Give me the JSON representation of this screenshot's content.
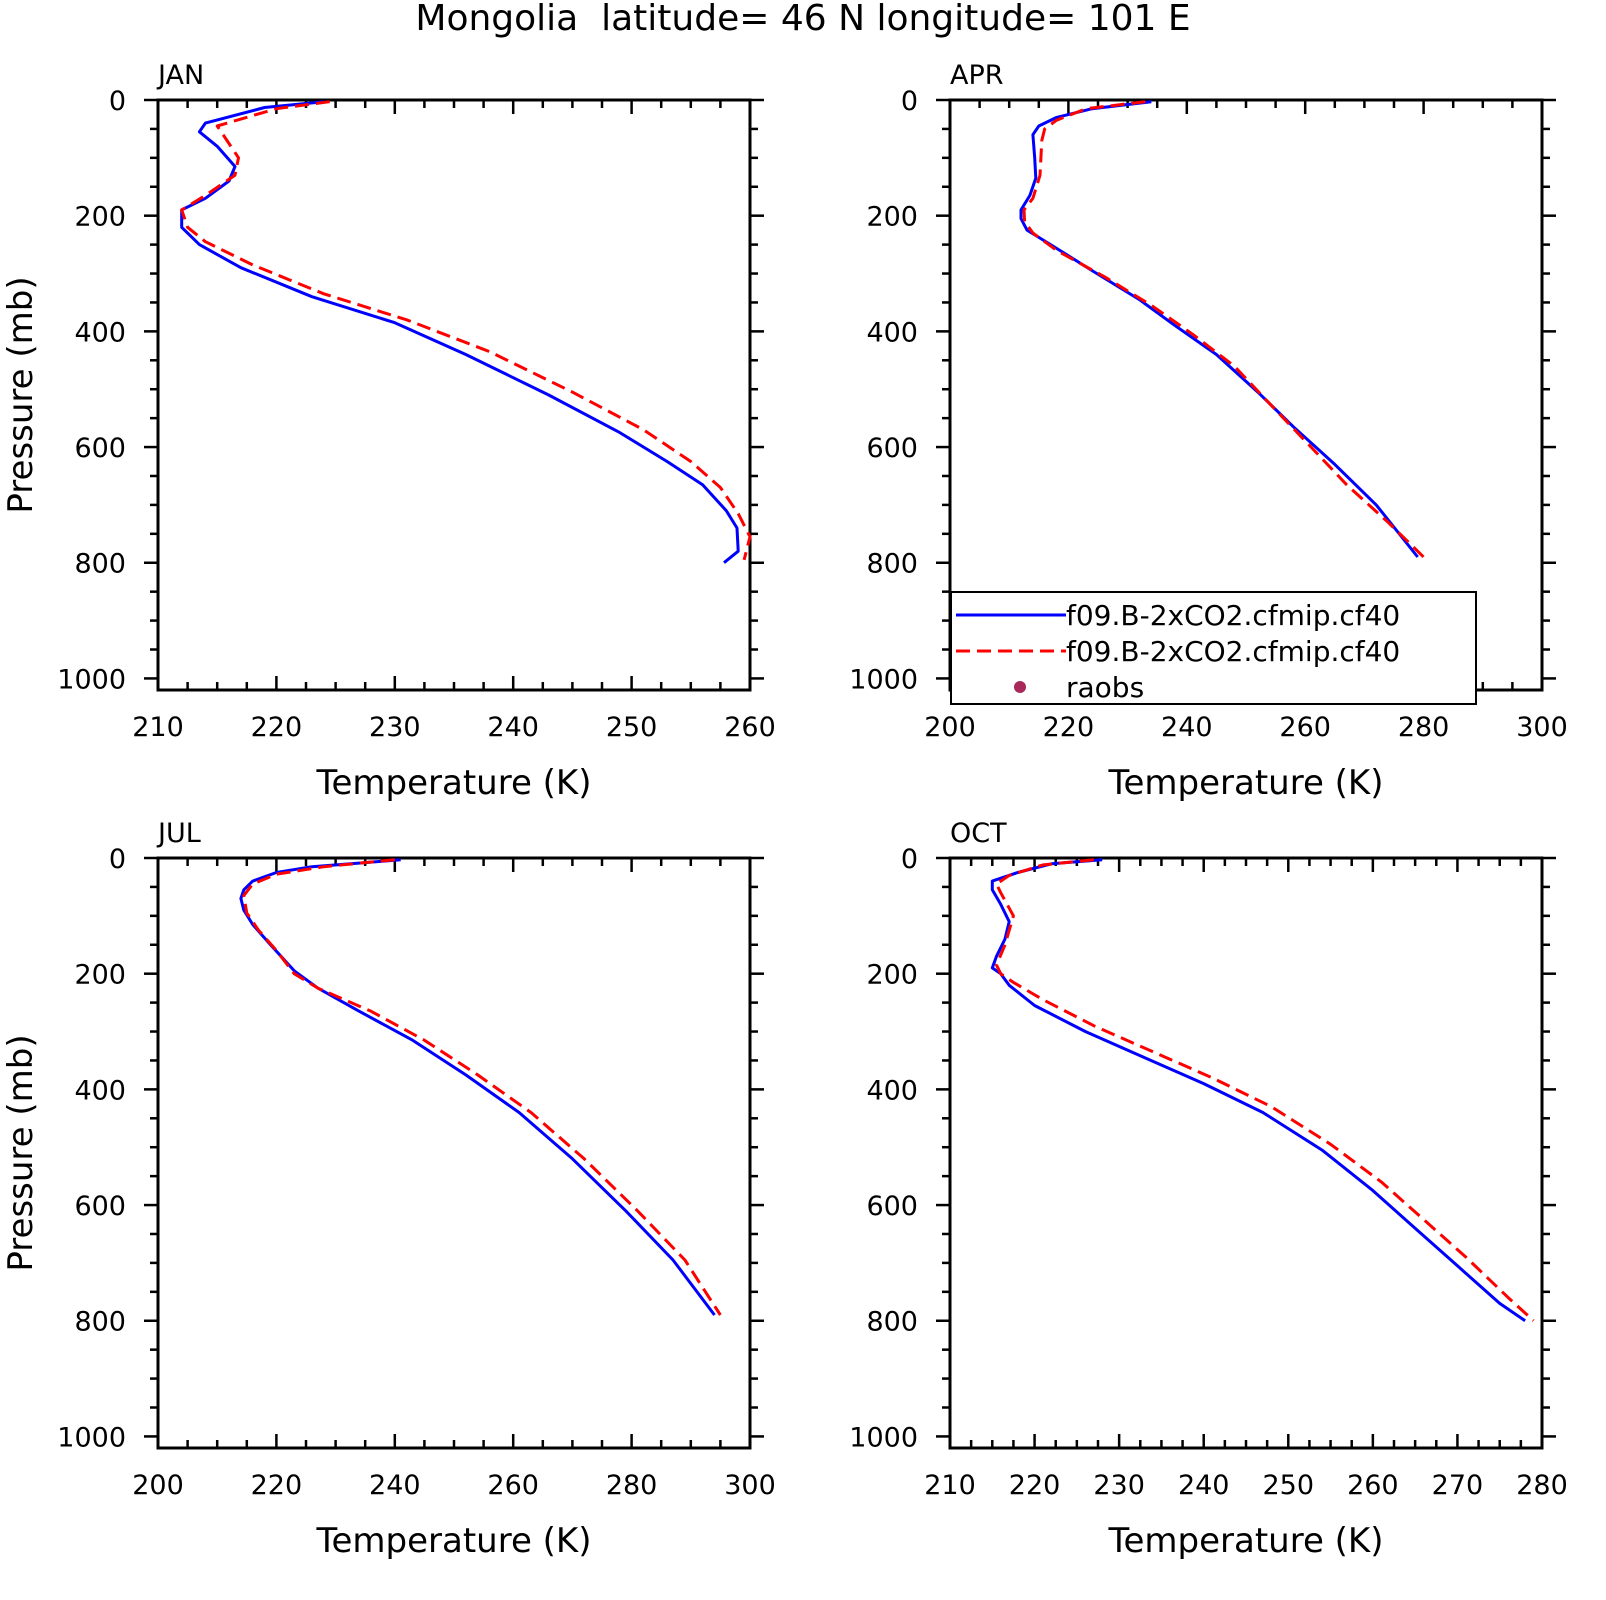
{
  "figure": {
    "title": "Mongolia  latitude= 46 N longitude= 101 E"
  },
  "legend": {
    "entries": [
      {
        "label": "f09.B-2xCO2.cfmip.cf40",
        "style": "solid",
        "color": "#0000ff"
      },
      {
        "label": "f09.B-2xCO2.cfmip.cf40",
        "style": "dashed",
        "color": "#ff0000"
      },
      {
        "label": "raobs",
        "style": "marker",
        "color": "#a8285a"
      }
    ]
  },
  "chart_data": [
    {
      "type": "line",
      "panel": "JAN",
      "title": "JAN",
      "xlabel": "Temperature (K)",
      "ylabel": "Pressure (mb)",
      "xlim": [
        210,
        260
      ],
      "ylim": [
        1020,
        0
      ],
      "y_inverted": true,
      "xticks": [
        210,
        220,
        230,
        240,
        250,
        260
      ],
      "yticks": [
        0,
        200,
        400,
        600,
        800,
        1000
      ],
      "series": [
        {
          "color": "#0000ff",
          "style": "solid",
          "x": [
            224,
            219,
            214,
            213.5,
            215,
            216.5,
            216,
            214,
            212,
            212,
            213.5,
            217,
            223,
            230,
            236,
            243,
            249,
            253,
            256,
            258,
            258.9,
            259,
            257.8
          ],
          "y": [
            3,
            13,
            40,
            55,
            80,
            115,
            140,
            170,
            190,
            220,
            250,
            290,
            340,
            385,
            440,
            510,
            575,
            625,
            665,
            710,
            740,
            780,
            800
          ]
        },
        {
          "color": "#ff0000",
          "style": "dashed",
          "x": [
            224.5,
            220,
            215,
            215.5,
            216.8,
            216.5,
            214,
            212,
            212.5,
            214,
            218,
            224,
            231,
            238,
            245,
            251,
            255,
            257.5,
            259,
            260,
            259.5
          ],
          "y": [
            3,
            15,
            45,
            60,
            100,
            130,
            165,
            190,
            220,
            245,
            285,
            335,
            380,
            435,
            505,
            570,
            625,
            670,
            715,
            755,
            795
          ]
        }
      ]
    },
    {
      "type": "line",
      "panel": "APR",
      "title": "APR",
      "xlabel": "Temperature (K)",
      "ylabel": "",
      "xlim": [
        200,
        300
      ],
      "ylim": [
        1020,
        0
      ],
      "y_inverted": true,
      "xticks": [
        200,
        220,
        240,
        260,
        280,
        300
      ],
      "yticks": [
        0,
        200,
        400,
        600,
        800,
        1000
      ],
      "series": [
        {
          "color": "#0000ff",
          "style": "solid",
          "x": [
            234,
            224,
            218,
            215,
            214,
            214.3,
            214.5,
            213.5,
            212,
            212,
            213,
            217,
            224,
            232,
            238,
            245,
            252,
            258,
            265,
            272,
            279
          ],
          "y": [
            3,
            15,
            30,
            45,
            60,
            100,
            135,
            165,
            190,
            205,
            225,
            250,
            295,
            345,
            390,
            440,
            505,
            565,
            630,
            700,
            790
          ]
        },
        {
          "color": "#ff0000",
          "style": "dashed",
          "x": [
            233,
            223,
            218,
            216,
            215.5,
            215.2,
            214,
            212.5,
            212.6,
            214,
            218,
            226,
            234,
            241,
            248,
            254,
            261,
            267,
            274,
            280
          ],
          "y": [
            3,
            15,
            35,
            50,
            70,
            130,
            170,
            190,
            210,
            230,
            260,
            305,
            355,
            405,
            460,
            525,
            600,
            665,
            730,
            790
          ]
        }
      ]
    },
    {
      "type": "line",
      "panel": "JUL",
      "title": "JUL",
      "xlabel": "Temperature (K)",
      "ylabel": "Pressure (mb)",
      "xlim": [
        200,
        300
      ],
      "ylim": [
        1020,
        0
      ],
      "y_inverted": true,
      "xticks": [
        200,
        220,
        240,
        260,
        280,
        300
      ],
      "yticks": [
        0,
        200,
        400,
        600,
        800,
        1000
      ],
      "series": [
        {
          "color": "#0000ff",
          "style": "solid",
          "x": [
            241,
            235,
            226,
            220,
            216,
            214.5,
            214,
            214.5,
            216,
            219,
            223,
            227,
            234,
            243,
            252,
            261,
            270,
            279,
            287,
            294
          ],
          "y": [
            3,
            8,
            15,
            25,
            40,
            55,
            70,
            90,
            115,
            150,
            195,
            225,
            265,
            315,
            375,
            440,
            520,
            610,
            695,
            790
          ]
        },
        {
          "color": "#ff0000",
          "style": "dashed",
          "x": [
            240,
            228,
            220,
            216,
            214.5,
            215,
            217,
            220,
            223,
            227,
            236,
            245,
            254,
            263,
            272,
            281,
            289,
            295
          ],
          "y": [
            3,
            15,
            28,
            45,
            65,
            95,
            125,
            160,
            200,
            225,
            265,
            315,
            375,
            440,
            520,
            610,
            695,
            790
          ]
        }
      ]
    },
    {
      "type": "line",
      "panel": "OCT",
      "title": "OCT",
      "xlabel": "Temperature (K)",
      "ylabel": "",
      "xlim": [
        210,
        280
      ],
      "ylim": [
        1020,
        0
      ],
      "y_inverted": true,
      "xticks": [
        210,
        220,
        230,
        240,
        250,
        260,
        270,
        280
      ],
      "yticks": [
        0,
        200,
        400,
        600,
        800,
        1000
      ],
      "series": [
        {
          "color": "#0000ff",
          "style": "solid",
          "x": [
            228,
            222,
            218,
            215,
            215,
            216,
            217,
            216.5,
            215.5,
            215,
            216,
            217,
            220,
            226,
            233,
            240,
            247,
            254,
            260,
            265,
            270,
            275,
            278
          ],
          "y": [
            3,
            10,
            25,
            40,
            55,
            80,
            110,
            140,
            170,
            190,
            200,
            220,
            255,
            300,
            345,
            390,
            440,
            505,
            575,
            640,
            705,
            770,
            800
          ]
        },
        {
          "color": "#ff0000",
          "style": "dashed",
          "x": [
            227,
            221,
            217,
            215.5,
            216,
            217.5,
            216.5,
            215.5,
            216,
            217.5,
            221,
            227,
            234,
            241,
            248,
            255,
            261,
            266,
            271,
            276,
            279
          ],
          "y": [
            3,
            12,
            30,
            45,
            60,
            100,
            150,
            185,
            200,
            215,
            245,
            290,
            335,
            380,
            430,
            495,
            560,
            625,
            690,
            760,
            800
          ]
        }
      ]
    }
  ]
}
